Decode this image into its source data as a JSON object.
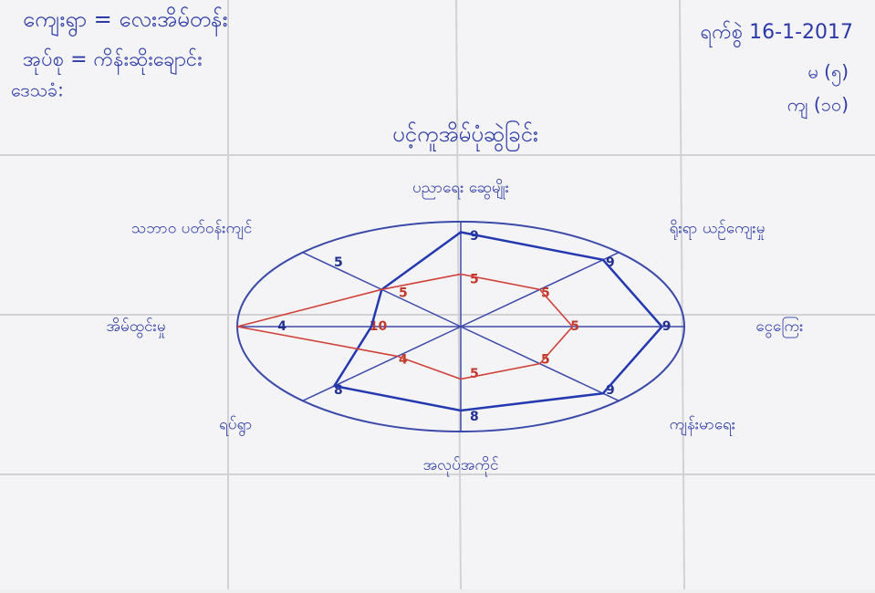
{
  "header": {
    "village": "ကျေးရွာ = လေးအိမ်တန်း",
    "group": "အုပ်စု = ကိန်းဆိုးချောင်း",
    "locals": "ဒေသခံ:",
    "date": "ရက်စွဲ 16-1-2017",
    "female": "မ (၅)",
    "male": "ကျ (၁၀)"
  },
  "title": "ပင့်ကူအိမ်ပုံဆွဲခြင်း",
  "scale_max": 10,
  "spokes": [
    {
      "label": "ပညာရေး ဆွေမျိုး",
      "blue": 9,
      "red": 5
    },
    {
      "label": "ရိုးရာ ယဉ်ကျေးမှု",
      "blue": 9,
      "red": 5
    },
    {
      "label": "ငွေကြေး",
      "blue": 9,
      "red": 5
    },
    {
      "label": "ကျန်းမာရေး",
      "blue": 9,
      "red": 5
    },
    {
      "label": "အလုပ်အကိုင်",
      "blue": 8,
      "red": 5
    },
    {
      "label": "ရပ်ရွာ",
      "blue": 8,
      "red": 4
    },
    {
      "label": "အိမ်ထွင်းမှု",
      "blue": 4,
      "red": 10
    },
    {
      "label": "သဘာဝ ပတ်ဝန်းကျင်",
      "blue": 5,
      "red": 5
    }
  ]
}
